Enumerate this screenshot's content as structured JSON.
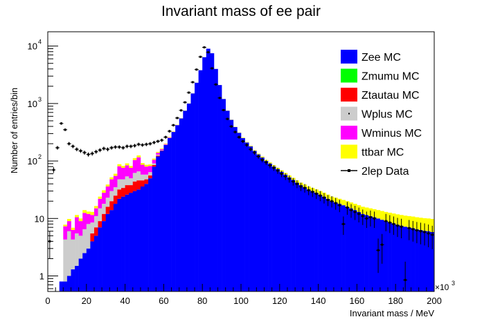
{
  "chart_data": {
    "type": "bar",
    "stacked": true,
    "title": "Invariant mass of ee pair",
    "xlabel": "Invariant mass / MeV",
    "ylabel": "Number of entries/bin",
    "x_multiplier": "×10",
    "x_multiplier_exp": "3",
    "xlim": [
      0,
      200
    ],
    "ylim": [
      0.5,
      20000
    ],
    "yscale": "log",
    "bin_width": 2,
    "x_ticks": [
      0,
      20,
      40,
      60,
      80,
      100,
      120,
      140,
      160,
      180,
      200
    ],
    "y_ticks": [
      {
        "value": 1,
        "label": "1"
      },
      {
        "value": 10,
        "label": "10"
      },
      {
        "value": 100,
        "label": "10",
        "exp": "2"
      },
      {
        "value": 1000,
        "label": "10",
        "exp": "3"
      },
      {
        "value": 10000,
        "label": "10",
        "exp": "4"
      }
    ],
    "legend_position": "top-right",
    "colors": {
      "Zee": "#0000ff",
      "Zmumu": "#00ff00",
      "Ztautau": "#ff0000",
      "Wplus": "#cccccc",
      "Wminus": "#ff00ff",
      "ttbar": "#ffff00",
      "data": "#000000"
    },
    "series": [
      {
        "name": "Zee MC",
        "key": "Zee",
        "marker": "box",
        "values": [
          0,
          0,
          0,
          0.8,
          0.8,
          1.0,
          1.3,
          1.5,
          2,
          2.5,
          3,
          4,
          5,
          7,
          9,
          12,
          14,
          18,
          22,
          24,
          26,
          28,
          30,
          32,
          36,
          40,
          50,
          80,
          120,
          150,
          190,
          250,
          320,
          420,
          550,
          750,
          1000,
          1500,
          2300,
          3800,
          6400,
          9000,
          7500,
          4000,
          2100,
          1200,
          750,
          520,
          390,
          310,
          250,
          210,
          180,
          150,
          130,
          115,
          100,
          90,
          80,
          72,
          65,
          58,
          52,
          47,
          42,
          38,
          35,
          32,
          30,
          28,
          26,
          24,
          22,
          20,
          19,
          18,
          17,
          16,
          15,
          14,
          13,
          12,
          11.5,
          11,
          10.5,
          10,
          9.5,
          9,
          8.6,
          8.2,
          7.8,
          7.5,
          7.2,
          7,
          6.8,
          6.5,
          6.3,
          6.1,
          6,
          5.8
        ]
      },
      {
        "name": "Zmumu MC",
        "key": "Zmumu",
        "marker": "box",
        "values": [
          0,
          0,
          0,
          0,
          0,
          0,
          0,
          0,
          0,
          0,
          0,
          0,
          0,
          0,
          0,
          0,
          0,
          0,
          0,
          0,
          0,
          0,
          0,
          0,
          0,
          0,
          0,
          0,
          0,
          0,
          0,
          0,
          0,
          0,
          0,
          0,
          0,
          0,
          0,
          0,
          0,
          0,
          0,
          0,
          0,
          0,
          0,
          0,
          0,
          0,
          0,
          0,
          0,
          0,
          0,
          0,
          0,
          0,
          0,
          0,
          0,
          0,
          0,
          0,
          0,
          0,
          0,
          0,
          0,
          0,
          0,
          0,
          0,
          0,
          0,
          0,
          0,
          0,
          0,
          0,
          0,
          0,
          0,
          0,
          0,
          0,
          0,
          0,
          0,
          0,
          0,
          0,
          0,
          0,
          0,
          0,
          0,
          0,
          0,
          0
        ]
      },
      {
        "name": "Ztautau MC",
        "key": "Ztautau",
        "marker": "box",
        "values": [
          0,
          0,
          0,
          0,
          0,
          0,
          0,
          0,
          0,
          0,
          0,
          1.5,
          2,
          2,
          3,
          4,
          6,
          7,
          10,
          10,
          12,
          10,
          14,
          14,
          10,
          8,
          6,
          5,
          4,
          2,
          1,
          1,
          0,
          0,
          0,
          0,
          0,
          0,
          0,
          0,
          0,
          0,
          0,
          0,
          0,
          0,
          0,
          0,
          0,
          0,
          0,
          0,
          0,
          0,
          0,
          0,
          0,
          0,
          0,
          0,
          0,
          0,
          0,
          0,
          0,
          0,
          0,
          0,
          0,
          0,
          0,
          0,
          0,
          0,
          0,
          0,
          0,
          0,
          0,
          0,
          0,
          0,
          0,
          0,
          0,
          0,
          0,
          0,
          0,
          0,
          0,
          0,
          0,
          0,
          0,
          0,
          0,
          0,
          0,
          0
        ]
      },
      {
        "name": "Wplus MC",
        "key": "Wplus",
        "marker": "dot",
        "values": [
          0,
          0,
          0,
          0,
          3.5,
          5,
          3,
          4,
          3,
          4,
          5,
          3,
          4,
          6,
          6,
          7,
          10,
          10,
          16,
          14,
          16,
          12,
          18,
          20,
          12,
          10,
          8,
          6,
          5,
          3,
          2,
          2,
          1,
          1,
          0,
          0,
          0,
          0,
          0,
          0,
          0,
          0,
          0,
          0,
          0,
          0,
          0,
          0,
          0,
          0,
          0,
          0,
          0,
          0,
          0,
          0,
          0,
          0,
          0,
          0,
          0,
          0,
          0,
          0,
          0,
          0,
          0,
          0,
          0,
          0,
          0,
          0,
          0,
          0,
          0,
          0,
          0,
          0,
          0,
          0,
          0,
          0,
          0,
          0,
          0,
          0,
          0,
          0,
          0,
          0,
          0,
          0,
          0,
          0,
          0,
          0,
          0,
          0,
          0,
          0
        ]
      },
      {
        "name": "Wminus MC",
        "key": "Wminus",
        "marker": "box",
        "values": [
          0,
          0,
          0,
          0,
          3,
          3,
          2,
          5,
          4,
          6,
          4,
          3,
          4,
          7,
          10,
          13,
          18,
          20,
          33,
          28,
          30,
          26,
          42,
          50,
          28,
          22,
          18,
          14,
          10,
          6,
          4,
          4,
          2,
          2,
          1,
          1,
          0,
          0,
          0,
          0,
          0,
          0,
          0,
          0,
          0,
          0,
          0,
          0,
          0,
          0,
          0,
          0,
          0,
          0,
          0,
          0,
          0,
          0,
          0,
          0,
          0,
          0,
          0,
          0,
          0,
          0,
          0,
          0,
          0,
          0,
          0,
          0,
          0,
          0,
          0,
          0,
          0,
          0,
          0,
          0,
          0,
          0,
          0,
          0,
          0,
          0,
          0,
          0,
          0,
          0,
          0,
          0,
          0,
          0,
          0,
          0,
          0,
          0,
          0,
          0
        ]
      },
      {
        "name": "ttbar MC",
        "key": "ttbar",
        "marker": "box",
        "values": [
          0,
          0,
          0,
          0,
          0.5,
          0.8,
          0.6,
          1,
          1,
          1.5,
          1.2,
          1.5,
          1.5,
          2,
          3,
          3,
          4,
          5,
          7,
          6,
          7,
          6,
          8,
          9,
          6,
          6,
          5,
          5,
          5,
          4,
          4,
          4,
          4,
          4,
          4,
          4,
          4,
          4,
          4,
          4,
          4,
          4,
          4,
          4,
          4,
          4,
          4,
          4,
          4,
          4,
          4,
          4,
          4,
          4,
          4,
          4,
          4,
          4,
          4,
          4,
          4,
          4,
          4,
          4,
          4,
          4,
          4,
          4,
          4,
          4,
          4,
          4,
          4,
          4,
          4,
          4,
          4,
          4,
          4,
          4,
          4,
          4,
          4,
          4,
          4,
          4,
          4,
          4,
          4,
          4,
          4,
          4,
          4,
          4,
          4,
          4,
          4,
          4,
          4,
          4
        ]
      }
    ],
    "data_series": {
      "name": "2lep Data",
      "marker": "point",
      "values": [
        4,
        70,
        170,
        450,
        350,
        200,
        180,
        160,
        150,
        140,
        130,
        135,
        145,
        155,
        165,
        160,
        170,
        175,
        175,
        170,
        180,
        180,
        185,
        195,
        190,
        195,
        200,
        210,
        220,
        230,
        260,
        330,
        420,
        560,
        760,
        1050,
        1550,
        2350,
        3900,
        6500,
        9500,
        7800,
        4100,
        2150,
        1250,
        770,
        540,
        400,
        320,
        260,
        220,
        190,
        160,
        140,
        120,
        105,
        95,
        84,
        76,
        68,
        60,
        54,
        49,
        44,
        40,
        36,
        34,
        31,
        29,
        27,
        25,
        23,
        21,
        20,
        18.5,
        17,
        8,
        15.5,
        14,
        13,
        12,
        11,
        10,
        10.5,
        10,
        2.8,
        3.5,
        9,
        8.5,
        8,
        7.5,
        7.2,
        0.85,
        6.8,
        6.5,
        6.2,
        6,
        5.8,
        5.5,
        5.2
      ]
    }
  }
}
